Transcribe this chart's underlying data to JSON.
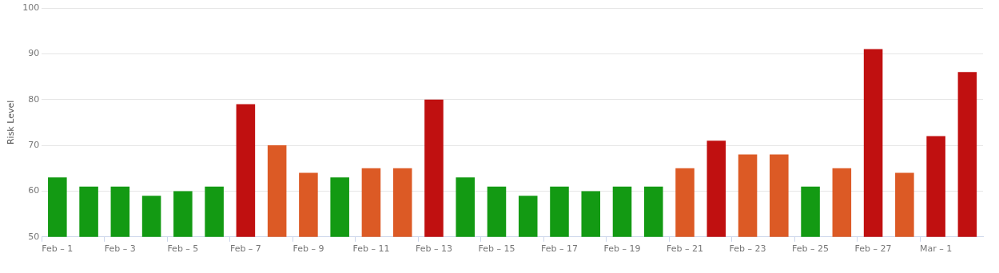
{
  "chart_data": {
    "type": "bar",
    "ylabel": "Risk Level",
    "categories": [
      "Feb – 1",
      null,
      "Feb – 3",
      null,
      "Feb – 5",
      null,
      "Feb – 7",
      null,
      "Feb – 9",
      null,
      "Feb – 11",
      null,
      "Feb – 13",
      null,
      "Feb – 15",
      null,
      "Feb – 17",
      null,
      "Feb – 19",
      null,
      "Feb – 21",
      null,
      "Feb – 23",
      null,
      "Feb – 25",
      null,
      "Feb – 27",
      null,
      "Mar – 1",
      null
    ],
    "values": [
      63,
      61,
      61,
      59,
      60,
      61,
      79,
      70,
      64,
      63,
      65,
      65,
      80,
      63,
      61,
      59,
      61,
      60,
      61,
      61,
      65,
      71,
      68,
      68,
      61,
      65,
      91,
      64,
      72,
      86
    ],
    "colors": [
      "#139a13",
      "#139a13",
      "#139a13",
      "#139a13",
      "#139a13",
      "#139a13",
      "#c01010",
      "#dc5a25",
      "#dc5a25",
      "#139a13",
      "#dc5a25",
      "#dc5a25",
      "#c01010",
      "#139a13",
      "#139a13",
      "#139a13",
      "#139a13",
      "#139a13",
      "#139a13",
      "#139a13",
      "#dc5a25",
      "#c01010",
      "#dc5a25",
      "#dc5a25",
      "#139a13",
      "#dc5a25",
      "#c01010",
      "#dc5a25",
      "#c01010",
      "#c01010"
    ],
    "ylim": [
      50,
      100
    ],
    "yticks": [
      50,
      60,
      70,
      80,
      90,
      100
    ],
    "grid": "y",
    "legend": false
  }
}
